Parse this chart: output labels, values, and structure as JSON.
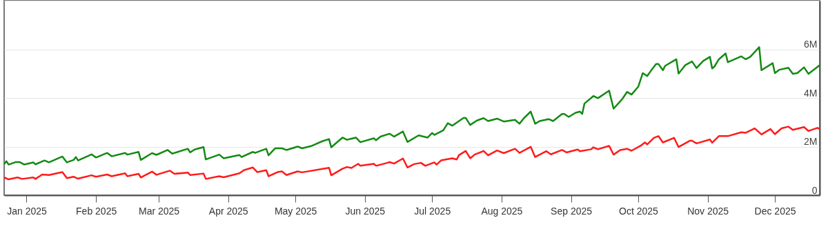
{
  "chart_data": {
    "type": "line",
    "grid": "y",
    "xlim": [
      "2024-12-22",
      "2025-12-21"
    ],
    "xticks": [
      {
        "value": "2025-01-01",
        "label": "Jan 2025"
      },
      {
        "value": "2025-02-01",
        "label": "Feb 2025"
      },
      {
        "value": "2025-03-01",
        "label": "Mar 2025"
      },
      {
        "value": "2025-04-01",
        "label": "Apr 2025"
      },
      {
        "value": "2025-05-01",
        "label": "May 2025"
      },
      {
        "value": "2025-06-01",
        "label": "Jun 2025"
      },
      {
        "value": "2025-07-01",
        "label": "Jul 2025"
      },
      {
        "value": "2025-08-01",
        "label": "Aug 2025"
      },
      {
        "value": "2025-09-01",
        "label": "Sep 2025"
      },
      {
        "value": "2025-10-01",
        "label": "Oct 2025"
      },
      {
        "value": "2025-11-01",
        "label": "Nov 2025"
      },
      {
        "value": "2025-12-01",
        "label": "Dec 2025"
      }
    ],
    "ylim": [
      0,
      8000000
    ],
    "yticks": [
      0,
      {
        "value": 2000000,
        "label": "2M"
      },
      {
        "value": 4000000,
        "label": "4M"
      },
      {
        "value": 6000000,
        "label": "6M"
      },
      {
        "value": 8000000,
        "label": null
      }
    ],
    "series": [
      {
        "color": "#138a13",
        "x": [
          "2024-12-22",
          "2024-12-23",
          "2024-12-24",
          "2024-12-27",
          "2024-12-29",
          "2024-12-31",
          "2025-01-04",
          "2025-01-05",
          "2025-01-09",
          "2025-01-11",
          "2025-01-17",
          "2025-01-19",
          "2025-01-22",
          "2025-01-23",
          "2025-01-24",
          "2025-01-30",
          "2025-02-01",
          "2025-02-06",
          "2025-02-08",
          "2025-02-14",
          "2025-02-15",
          "2025-02-20",
          "2025-02-21",
          "2025-02-26",
          "2025-02-28",
          "2025-03-05",
          "2025-03-07",
          "2025-03-14",
          "2025-03-15",
          "2025-03-17",
          "2025-03-21",
          "2025-03-22",
          "2025-03-28",
          "2025-03-30",
          "2025-04-06",
          "2025-04-07",
          "2025-04-12",
          "2025-04-13",
          "2025-04-18",
          "2025-04-19",
          "2025-04-22",
          "2025-04-25",
          "2025-04-27",
          "2025-05-02",
          "2025-05-04",
          "2025-05-08",
          "2025-05-13",
          "2025-05-16",
          "2025-05-17",
          "2025-05-22",
          "2025-05-24",
          "2025-05-28",
          "2025-05-30",
          "2025-06-05",
          "2025-06-06",
          "2025-06-08",
          "2025-06-12",
          "2025-06-14",
          "2025-06-18",
          "2025-06-20",
          "2025-06-25",
          "2025-06-29",
          "2025-07-01",
          "2025-07-02",
          "2025-07-06",
          "2025-07-08",
          "2025-07-10",
          "2025-07-15",
          "2025-07-16",
          "2025-07-18",
          "2025-07-21",
          "2025-07-24",
          "2025-07-26",
          "2025-07-30",
          "2025-08-02",
          "2025-08-07",
          "2025-08-09",
          "2025-08-11",
          "2025-08-14",
          "2025-08-16",
          "2025-08-18",
          "2025-08-22",
          "2025-08-24",
          "2025-08-28",
          "2025-08-29",
          "2025-08-31",
          "2025-09-03",
          "2025-09-05",
          "2025-09-06",
          "2025-09-07",
          "2025-09-11",
          "2025-09-13",
          "2025-09-18",
          "2025-09-20",
          "2025-09-24",
          "2025-09-26",
          "2025-09-28",
          "2025-10-01",
          "2025-10-03",
          "2025-10-05",
          "2025-10-07",
          "2025-10-09",
          "2025-10-10",
          "2025-10-12",
          "2025-10-13",
          "2025-10-18",
          "2025-10-19",
          "2025-10-22",
          "2025-10-25",
          "2025-10-27",
          "2025-10-30",
          "2025-11-02",
          "2025-11-03",
          "2025-11-04",
          "2025-11-06",
          "2025-11-09",
          "2025-11-10",
          "2025-11-16",
          "2025-11-18",
          "2025-11-20",
          "2025-11-24",
          "2025-11-25",
          "2025-11-30",
          "2025-12-01",
          "2025-12-03",
          "2025-12-07",
          "2025-12-09",
          "2025-12-11",
          "2025-12-14",
          "2025-12-16",
          "2025-12-21"
        ],
        "values": [
          1280000,
          1400000,
          1260000,
          1360000,
          1360000,
          1260000,
          1350000,
          1270000,
          1430000,
          1350000,
          1590000,
          1350000,
          1450000,
          1570000,
          1430000,
          1680000,
          1550000,
          1740000,
          1600000,
          1740000,
          1670000,
          1780000,
          1450000,
          1730000,
          1660000,
          1860000,
          1710000,
          1910000,
          1760000,
          1880000,
          1980000,
          1470000,
          1670000,
          1520000,
          1650000,
          1570000,
          1780000,
          1740000,
          1910000,
          1640000,
          1930000,
          1930000,
          1860000,
          2000000,
          1930000,
          2020000,
          2220000,
          2310000,
          1970000,
          2370000,
          2280000,
          2370000,
          2180000,
          2340000,
          2260000,
          2410000,
          2530000,
          2410000,
          2620000,
          2190000,
          2460000,
          2370000,
          2560000,
          2480000,
          2670000,
          2960000,
          2860000,
          3180000,
          3180000,
          2890000,
          3070000,
          3170000,
          3050000,
          3150000,
          3030000,
          3100000,
          2940000,
          3170000,
          3440000,
          2940000,
          3050000,
          3130000,
          3050000,
          3340000,
          3340000,
          3220000,
          3390000,
          3440000,
          3340000,
          3770000,
          4080000,
          3990000,
          4300000,
          3560000,
          3970000,
          4250000,
          4140000,
          4460000,
          5020000,
          4900000,
          5160000,
          5400000,
          5400000,
          5140000,
          5320000,
          5590000,
          5000000,
          5350000,
          5500000,
          5230000,
          5520000,
          5690000,
          5210000,
          5290000,
          5590000,
          5830000,
          5470000,
          5710000,
          5590000,
          5690000,
          6090000,
          5140000,
          5430000,
          5020000,
          5160000,
          5240000,
          4990000,
          5020000,
          5260000,
          4990000,
          5350000
        ]
      },
      {
        "color": "#ff1a1a",
        "x": [
          "2024-12-22",
          "2024-12-24",
          "2024-12-28",
          "2024-12-30",
          "2025-01-04",
          "2025-01-05",
          "2025-01-08",
          "2025-01-11",
          "2025-01-17",
          "2025-01-19",
          "2025-01-22",
          "2025-01-24",
          "2025-01-30",
          "2025-02-01",
          "2025-02-06",
          "2025-02-08",
          "2025-02-14",
          "2025-02-15",
          "2025-02-20",
          "2025-02-21",
          "2025-02-26",
          "2025-02-28",
          "2025-03-06",
          "2025-03-08",
          "2025-03-14",
          "2025-03-15",
          "2025-03-21",
          "2025-03-22",
          "2025-03-28",
          "2025-03-30",
          "2025-04-06",
          "2025-04-08",
          "2025-04-12",
          "2025-04-14",
          "2025-04-18",
          "2025-04-19",
          "2025-04-23",
          "2025-04-25",
          "2025-04-27",
          "2025-05-02",
          "2025-05-04",
          "2025-05-16",
          "2025-05-17",
          "2025-05-22",
          "2025-05-24",
          "2025-05-26",
          "2025-05-29",
          "2025-05-30",
          "2025-06-05",
          "2025-06-06",
          "2025-06-11",
          "2025-06-12",
          "2025-06-14",
          "2025-06-18",
          "2025-06-20",
          "2025-06-23",
          "2025-06-26",
          "2025-06-28",
          "2025-07-02",
          "2025-07-03",
          "2025-07-05",
          "2025-07-10",
          "2025-07-12",
          "2025-07-13",
          "2025-07-16",
          "2025-07-18",
          "2025-07-20",
          "2025-07-24",
          "2025-07-26",
          "2025-07-30",
          "2025-08-02",
          "2025-08-07",
          "2025-08-09",
          "2025-08-14",
          "2025-08-16",
          "2025-08-21",
          "2025-08-23",
          "2025-08-28",
          "2025-08-30",
          "2025-09-04",
          "2025-09-05",
          "2025-09-10",
          "2025-09-11",
          "2025-09-13",
          "2025-09-18",
          "2025-09-20",
          "2025-09-23",
          "2025-09-26",
          "2025-09-28",
          "2025-10-02",
          "2025-10-04",
          "2025-10-05",
          "2025-10-08",
          "2025-10-10",
          "2025-10-12",
          "2025-10-17",
          "2025-10-19",
          "2025-10-24",
          "2025-10-25",
          "2025-10-27",
          "2025-11-02",
          "2025-11-03",
          "2025-11-06",
          "2025-11-10",
          "2025-11-16",
          "2025-11-18",
          "2025-11-22",
          "2025-11-25",
          "2025-11-29",
          "2025-12-01",
          "2025-12-04",
          "2025-12-07",
          "2025-12-09",
          "2025-12-14",
          "2025-12-16",
          "2025-12-20",
          "2025-12-21"
        ],
        "values": [
          730000,
          650000,
          730000,
          670000,
          730000,
          670000,
          850000,
          830000,
          950000,
          700000,
          760000,
          680000,
          820000,
          760000,
          850000,
          780000,
          900000,
          780000,
          880000,
          730000,
          970000,
          840000,
          1010000,
          880000,
          930000,
          830000,
          890000,
          670000,
          780000,
          740000,
          900000,
          1030000,
          1140000,
          950000,
          1030000,
          780000,
          950000,
          980000,
          830000,
          980000,
          940000,
          1130000,
          820000,
          1090000,
          1160000,
          1120000,
          1290000,
          1210000,
          1290000,
          1210000,
          1330000,
          1360000,
          1300000,
          1510000,
          1140000,
          1280000,
          1330000,
          1210000,
          1350000,
          1260000,
          1430000,
          1520000,
          1470000,
          1650000,
          1820000,
          1520000,
          1670000,
          1820000,
          1640000,
          1840000,
          1730000,
          1910000,
          1740000,
          1990000,
          1570000,
          1810000,
          1680000,
          1860000,
          1760000,
          1880000,
          1810000,
          1890000,
          1970000,
          1890000,
          2030000,
          1670000,
          1860000,
          1910000,
          1830000,
          2030000,
          2170000,
          2090000,
          2360000,
          2430000,
          2170000,
          2360000,
          1980000,
          2240000,
          2240000,
          2130000,
          2290000,
          2160000,
          2430000,
          2430000,
          2590000,
          2570000,
          2750000,
          2500000,
          2720000,
          2510000,
          2750000,
          2820000,
          2690000,
          2800000,
          2640000,
          2770000,
          2720000
        ]
      }
    ]
  }
}
